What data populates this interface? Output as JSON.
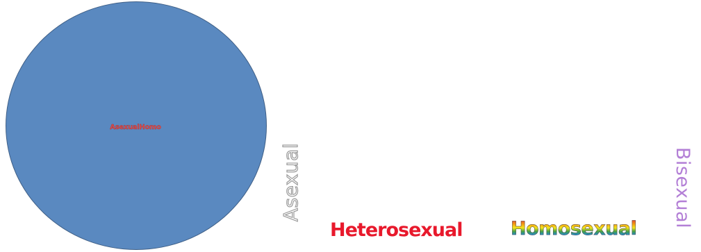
{
  "diagram": {
    "circle": {
      "label": "AsexualHomo",
      "fill_color": "#5a89c0",
      "label_color": "#d85050"
    },
    "labels": {
      "asexual": "Asexual",
      "heterosexual": "Heterosexual",
      "homosexual": "Homosexual",
      "bisexual": "Bisexual"
    },
    "colors": {
      "asexual_outline": "#9a9a9a",
      "heterosexual": "#e8192c",
      "homosexual": "rainbow-gradient",
      "bisexual": "#b37fd6"
    }
  }
}
